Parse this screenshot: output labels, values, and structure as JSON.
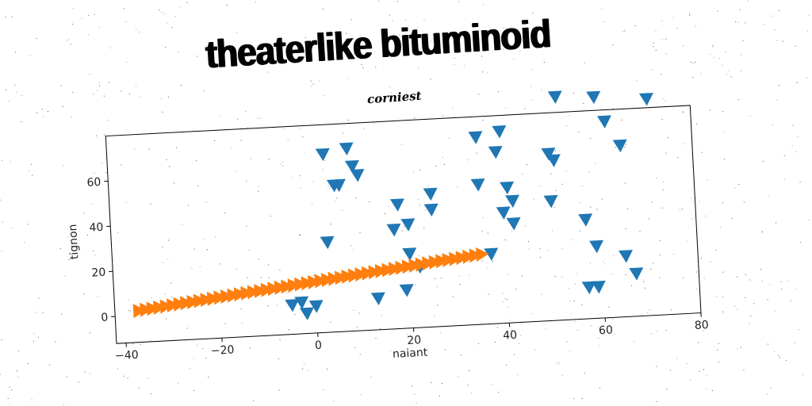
{
  "title": "theaterlike bituminoid",
  "subtitle": "corniest",
  "chart_data": {
    "type": "scatter",
    "xlabel": "naiant",
    "ylabel": "tignon",
    "xlim": [
      -42,
      80
    ],
    "ylim": [
      -12,
      80
    ],
    "xticks": [
      -40,
      -20,
      0,
      20,
      40,
      60,
      80
    ],
    "yticks": [
      0,
      20,
      40,
      60
    ],
    "grid": false,
    "series": [
      {
        "marker": "triangle-down",
        "color": "#1f77b4",
        "points": [
          [
            -5,
            1
          ],
          [
            -3,
            2
          ],
          [
            -2,
            -3
          ],
          [
            0,
            0
          ],
          [
            3,
            28
          ],
          [
            3,
            67
          ],
          [
            5,
            53
          ],
          [
            6,
            53
          ],
          [
            8,
            69
          ],
          [
            9,
            61
          ],
          [
            10,
            57
          ],
          [
            13,
            2
          ],
          [
            17,
            32
          ],
          [
            18,
            43
          ],
          [
            19,
            5
          ],
          [
            20,
            34
          ],
          [
            20,
            21
          ],
          [
            22,
            15
          ],
          [
            25,
            47
          ],
          [
            25,
            40
          ],
          [
            35,
            50
          ],
          [
            35,
            71
          ],
          [
            37,
            19
          ],
          [
            39,
            64
          ],
          [
            40,
            73
          ],
          [
            40,
            37
          ],
          [
            41,
            48
          ],
          [
            42,
            42
          ],
          [
            42,
            32
          ],
          [
            50,
            62
          ],
          [
            50,
            41
          ],
          [
            51,
            59
          ],
          [
            52,
            87
          ],
          [
            57,
            32
          ],
          [
            57,
            2
          ],
          [
            59,
            2
          ],
          [
            59,
            20
          ],
          [
            60,
            86
          ],
          [
            62,
            75
          ],
          [
            65,
            64
          ],
          [
            65,
            15
          ],
          [
            67,
            7
          ],
          [
            71,
            84
          ]
        ]
      },
      {
        "marker": "triangle-right",
        "color": "#ff7f0e",
        "x_range": [
          -37,
          35
        ],
        "y_range": [
          2,
          19
        ],
        "count": 52
      }
    ]
  }
}
